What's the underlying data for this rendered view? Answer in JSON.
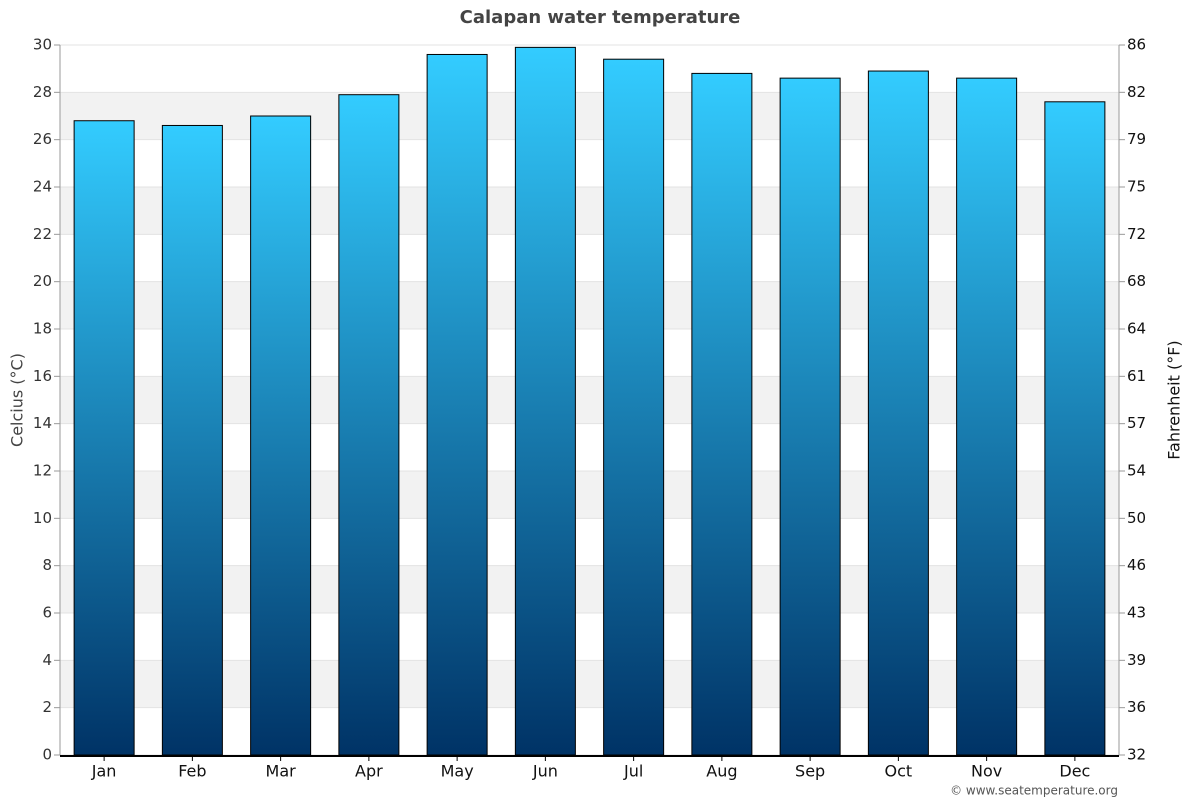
{
  "chart_data": {
    "type": "bar",
    "title": "Calapan water temperature",
    "categories": [
      "Jan",
      "Feb",
      "Mar",
      "Apr",
      "May",
      "Jun",
      "Jul",
      "Aug",
      "Sep",
      "Oct",
      "Nov",
      "Dec"
    ],
    "values": [
      26.8,
      26.6,
      27.0,
      27.9,
      29.6,
      29.9,
      29.4,
      28.8,
      28.6,
      28.9,
      28.6,
      27.6
    ],
    "gradient": [
      "#33ccff",
      "#003366"
    ],
    "ylabel": "Celcius (°C)",
    "y2label": "Fahrenheit (°F)",
    "ylim": [
      0,
      30
    ],
    "yticks": [
      0,
      2,
      4,
      6,
      8,
      10,
      12,
      14,
      16,
      18,
      20,
      22,
      24,
      26,
      28,
      30
    ],
    "y2lim": [
      32,
      86
    ],
    "y2ticks": [
      32,
      {
        "value": 35.6,
        "label": "36"
      },
      {
        "value": 39.2,
        "label": "39"
      },
      {
        "value": 42.8,
        "label": "43"
      },
      {
        "value": 46.4,
        "label": "46"
      },
      50,
      {
        "value": 53.6,
        "label": "54"
      },
      {
        "value": 57.2,
        "label": "57"
      },
      {
        "value": 60.8,
        "label": "61"
      },
      {
        "value": 64.4,
        "label": "64"
      },
      68,
      {
        "value": 71.6,
        "label": "72"
      },
      {
        "value": 75.2,
        "label": "75"
      },
      {
        "value": 78.8,
        "label": "79"
      },
      {
        "value": 82.4,
        "label": "82"
      },
      86
    ],
    "grid": true,
    "credit": "© www.seatemperature.org"
  }
}
